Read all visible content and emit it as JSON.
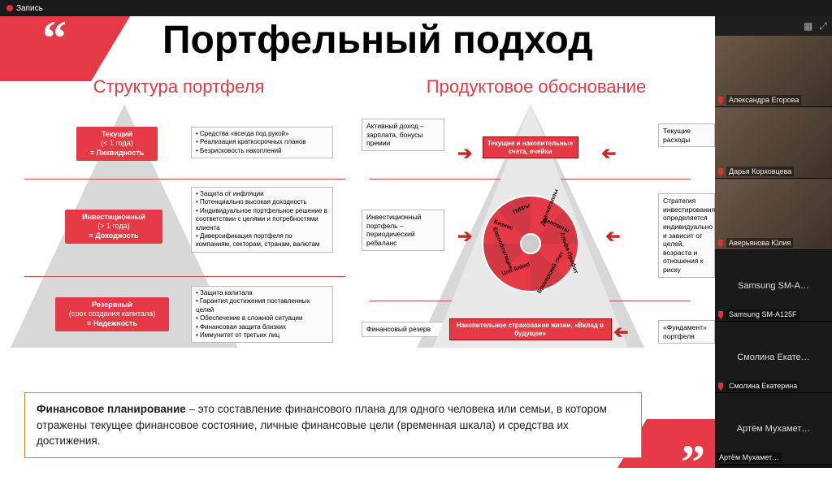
{
  "topbar": {
    "recording_label": "Запись"
  },
  "slide": {
    "title": "Портфельный подход",
    "subtitle_left": "Структура портфеля",
    "subtitle_right": "Продуктовое обоснование",
    "colors": {
      "accent": "#e63946",
      "dark": "#111111",
      "divider": "#b94a4a",
      "footer_border": "#c7852e"
    },
    "left_pyramid": {
      "tiers": [
        {
          "label_lines": [
            "Текущий",
            "(< 1 года)",
            "= Ликвидность"
          ],
          "bullets": [
            "Средства «всегда под рукой»",
            "Реализация краткосрочных планов",
            "Безрисковость накоплений"
          ]
        },
        {
          "label_lines": [
            "Инвестиционный",
            "(> 1 года)",
            "= Доходность"
          ],
          "bullets": [
            "Защита от инфляции",
            "Потенциально высокая доходность",
            "Индивидуальное портфельное решение в соответствии с целями и потребностями клиента",
            "Диверсификация портфеля по компаниям, секторам, странам, валютам"
          ]
        },
        {
          "label_lines": [
            "Резервный",
            "(срок создания капитала)",
            "= Надежность"
          ],
          "bullets": [
            "Защита капитала",
            "Гарантия достижения поставленных целей",
            "Обеспечение в сложной ситуации",
            "Финансовая защита близких",
            "Иммунитет от третьих лиц"
          ]
        }
      ]
    },
    "right_pyramid": {
      "left_boxes": [
        "Активный доход – зарплата, бонусы премии",
        "Инвестиционный портфель – периодический ребаланс",
        "Финансовый резерв"
      ],
      "right_boxes": [
        "Текущие расходы",
        "Стратегия инвестирования определяется индивидуально и зависит от целей, возраста и отношения к риску",
        "«Фундамент» портфеля"
      ],
      "top_box": "Текущие и накопительные счета, ячейки",
      "bottom_box": "Накопительное страхование жизни, «Вклад в будущее»",
      "wheel_labels": [
        "Депозиты",
        "Альфа-Профит",
        "Брокерский счет",
        "Unit-linked",
        "Еврооблигации",
        "Бизнес",
        "ПИФы",
        "Драгметаллы"
      ]
    },
    "footer": {
      "bold": "Финансовое планирование",
      "rest": " – это составление финансового плана для одного человека или семьи, в котором отражены текущее финансовое состояние, личные финансовые цели  (временная шкала) и средства их достижения."
    }
  },
  "panel": {
    "participants": [
      {
        "name": "Александра Егорова",
        "video": true,
        "muted": true
      },
      {
        "name": "Дарья Корховцева",
        "video": true,
        "muted": true
      },
      {
        "name": "Аверьянова Юлия",
        "video": true,
        "muted": true
      },
      {
        "name": "Samsung SM-A…",
        "video": false,
        "muted": true,
        "sub": "Samsung SM-A125F"
      },
      {
        "name": "Смолина Екате…",
        "video": false,
        "muted": true,
        "sub": "Смолина Екатерина"
      },
      {
        "name": "Артём Мухамет…",
        "video": false,
        "muted": false
      }
    ]
  }
}
